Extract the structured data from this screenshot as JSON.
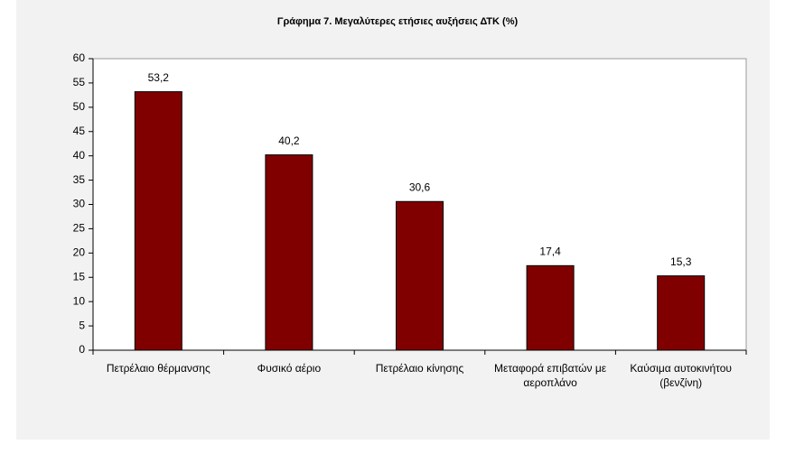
{
  "chart_data": {
    "type": "bar",
    "title": "Γράφημα 7. Μεγαλύτερες ετήσιες αυξήσεις ΔΤΚ (%)",
    "categories": [
      "Πετρέλαιο θέρμανσης",
      "Φυσικό αέριο",
      "Πετρέλαιο κίνησης",
      "Μεταφορά επιβατών με αεροπλάνο",
      "Καύσιμα αυτοκινήτου (βενζίνη)"
    ],
    "values": [
      53.2,
      40.2,
      30.6,
      17.4,
      15.3
    ],
    "value_labels": [
      "53,2",
      "40,2",
      "30,6",
      "17,4",
      "15,3"
    ],
    "color": "#800000",
    "ylim": [
      0,
      60
    ],
    "yticks": [
      0,
      5,
      10,
      15,
      20,
      25,
      30,
      35,
      40,
      45,
      50,
      55,
      60
    ],
    "grid": false
  }
}
